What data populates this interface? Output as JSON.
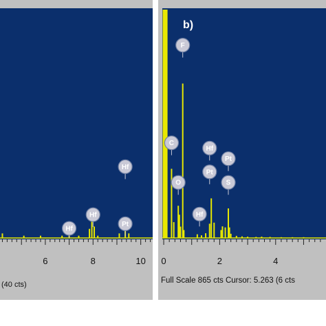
{
  "chart_data": [
    {
      "type": "bar",
      "panel": "a",
      "xlim": [
        4.1,
        10.5
      ],
      "x_ticks": [
        6,
        8,
        10
      ],
      "series": [
        {
          "x": [
            4.2,
            5.1,
            5.8,
            6.7,
            7.0,
            7.4,
            7.85,
            7.95,
            8.05,
            8.2,
            9.1,
            9.35,
            9.5
          ],
          "y": [
            2,
            1,
            1,
            1,
            3,
            1,
            4,
            9,
            5,
            1,
            2,
            4,
            2
          ]
        }
      ],
      "peak_labels": [
        {
          "element": "Hf",
          "x": 7.0,
          "y": 3
        },
        {
          "element": "Hf",
          "x": 8.0,
          "y": 9
        },
        {
          "element": "Hf",
          "x": 9.35,
          "y": 30
        },
        {
          "element": "Pt",
          "x": 9.35,
          "y": 5
        }
      ],
      "status_text": "(40 cts)",
      "yscale_max": 100
    },
    {
      "type": "bar",
      "panel": "b",
      "title": "b)",
      "xlim": [
        -0.05,
        5.8
      ],
      "x_ticks": [
        0,
        2,
        4
      ],
      "series": [
        {
          "x": [
            0.0,
            0.05,
            0.1,
            0.28,
            0.36,
            0.52,
            0.56,
            0.6,
            0.68,
            0.72,
            1.2,
            1.35,
            1.5,
            1.64,
            1.7,
            1.8,
            2.05,
            2.1,
            2.2,
            2.31,
            2.35,
            2.4,
            2.6,
            2.8,
            3.0,
            3.3,
            3.5,
            3.8,
            4.2,
            4.6,
            5.0
          ],
          "y": [
            865,
            865,
            865,
            262,
            60,
            122,
            88,
            43,
            585,
            30,
            14,
            10,
            18,
            54,
            150,
            58,
            30,
            44,
            40,
            112,
            40,
            16,
            8,
            6,
            5,
            4,
            5,
            4,
            3,
            3,
            3
          ]
        }
      ],
      "peak_labels": [
        {
          "element": "C",
          "x": 0.28,
          "y": 350
        },
        {
          "element": "O",
          "x": 0.52,
          "y": 200
        },
        {
          "element": "F",
          "x": 0.68,
          "y": 720
        },
        {
          "element": "Hf",
          "x": 1.64,
          "y": 330
        },
        {
          "element": "Pt",
          "x": 1.64,
          "y": 240
        },
        {
          "element": "Hf",
          "x": 1.28,
          "y": 80
        },
        {
          "element": "Pt",
          "x": 2.31,
          "y": 290
        },
        {
          "element": "S",
          "x": 2.31,
          "y": 200
        }
      ],
      "status_text": "Full Scale 865 cts Cursor: 5.263  (6 cts",
      "yscale_max": 865
    }
  ],
  "colors": {
    "plot_bg": "#0b2f6c",
    "spectrum": "#e8e800",
    "panel_bg": "#c0c0c0",
    "marker": "#c9c9d6"
  }
}
